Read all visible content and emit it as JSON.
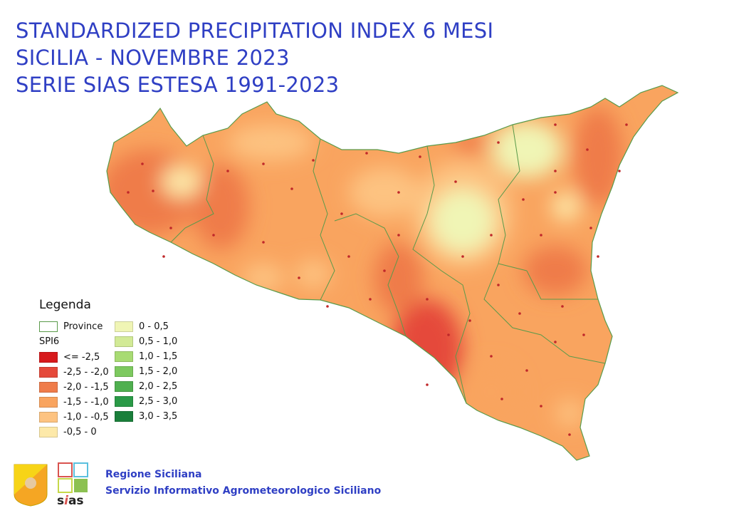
{
  "title": {
    "line1": "STANDARDIZED PRECIPITATION INDEX 6 MESI",
    "line2": "SICILIA - NOVEMBRE 2023",
    "line3": "SERIE SIAS ESTESA 1991-2023"
  },
  "legend": {
    "title": "Legenda",
    "province_label": "Province",
    "province_color": "#5a9a4a",
    "index_label": "SPI6",
    "classes_negative": [
      {
        "label": "<= -2,5",
        "color": "#d7191c"
      },
      {
        "label": "-2,5 - -2,0",
        "color": "#e5493a"
      },
      {
        "label": "-2,0 - -1,5",
        "color": "#ef7c4a"
      },
      {
        "label": "-1,5 - -1,0",
        "color": "#f9a45f"
      },
      {
        "label": "-1,0 - -0,5",
        "color": "#fdc381"
      },
      {
        "label": "-0,5 - 0",
        "color": "#fde9a9"
      }
    ],
    "classes_positive": [
      {
        "label": "0 - 0,5",
        "color": "#f0f5b5"
      },
      {
        "label": "0,5 - 1,0",
        "color": "#d2ea96"
      },
      {
        "label": "1,0 - 1,5",
        "color": "#a8db73"
      },
      {
        "label": "1,5 - 2,0",
        "color": "#7dc95f"
      },
      {
        "label": "2,0 - 2,5",
        "color": "#4fb04f"
      },
      {
        "label": "2,5 - 3,0",
        "color": "#2a9a47"
      },
      {
        "label": "3,0 - 3,5",
        "color": "#1a7f3b"
      }
    ]
  },
  "footer": {
    "line1": "Regione Siciliana",
    "line2": "Servizio Informativo Agrometeorologico Siciliano",
    "logo_text": "sias"
  },
  "colors": {
    "title": "#2f3fc4",
    "station": "#c0282a"
  }
}
